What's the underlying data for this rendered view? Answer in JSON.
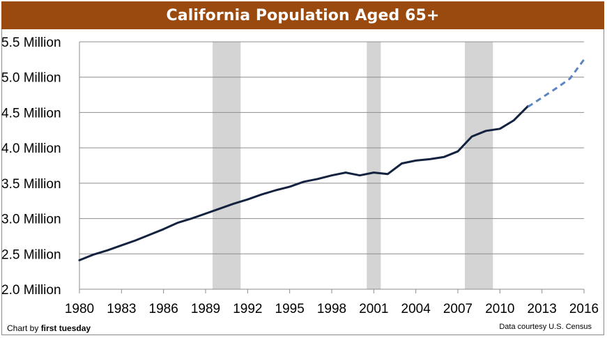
{
  "chart_data": {
    "type": "line",
    "title": "California Population Aged 65+",
    "x_ticks": [
      "1980",
      "1983",
      "1986",
      "1989",
      "1992",
      "1995",
      "1998",
      "2001",
      "2004",
      "2007",
      "2010",
      "2013",
      "2016"
    ],
    "y_ticks": [
      "2.0 Million",
      "2.5 Million",
      "3.0 Million",
      "3.5 Million",
      "4.0 Million",
      "4.5 Million",
      "5.0 Million",
      "5.5 Million"
    ],
    "xlim": [
      1980,
      2016
    ],
    "ylim": [
      2.0,
      5.5
    ],
    "y_unit": "Million",
    "grid": "horizontal",
    "recession_bands": [
      [
        1989.5,
        1991.5
      ],
      [
        2000.5,
        2001.5
      ],
      [
        2007.5,
        2009.5
      ]
    ],
    "series": [
      {
        "style": "solid",
        "color": "#13233f",
        "points": [
          [
            1980,
            2.41
          ],
          [
            1981,
            2.49
          ],
          [
            1982,
            2.55
          ],
          [
            1983,
            2.62
          ],
          [
            1984,
            2.69
          ],
          [
            1985,
            2.77
          ],
          [
            1986,
            2.85
          ],
          [
            1987,
            2.94
          ],
          [
            1988,
            3.0
          ],
          [
            1989,
            3.07
          ],
          [
            1990,
            3.14
          ],
          [
            1991,
            3.21
          ],
          [
            1992,
            3.27
          ],
          [
            1993,
            3.34
          ],
          [
            1994,
            3.4
          ],
          [
            1995,
            3.45
          ],
          [
            1996,
            3.52
          ],
          [
            1997,
            3.56
          ],
          [
            1998,
            3.61
          ],
          [
            1999,
            3.65
          ],
          [
            2000,
            3.61
          ],
          [
            2001,
            3.65
          ],
          [
            2002,
            3.63
          ],
          [
            2003,
            3.78
          ],
          [
            2004,
            3.82
          ],
          [
            2005,
            3.84
          ],
          [
            2006,
            3.87
          ],
          [
            2007,
            3.95
          ],
          [
            2008,
            4.16
          ],
          [
            2009,
            4.24
          ],
          [
            2010,
            4.27
          ],
          [
            2011,
            4.39
          ],
          [
            2012,
            4.59
          ]
        ]
      },
      {
        "style": "dashed",
        "color": "#5b84c0",
        "points": [
          [
            2012,
            4.58
          ],
          [
            2013,
            4.71
          ],
          [
            2014,
            4.84
          ],
          [
            2015,
            4.98
          ],
          [
            2016,
            5.25
          ]
        ]
      }
    ]
  },
  "footer": {
    "credit_prefix": "Chart by ",
    "credit_brand": "first tuesday",
    "source": "Data courtesy U.S. Census"
  }
}
